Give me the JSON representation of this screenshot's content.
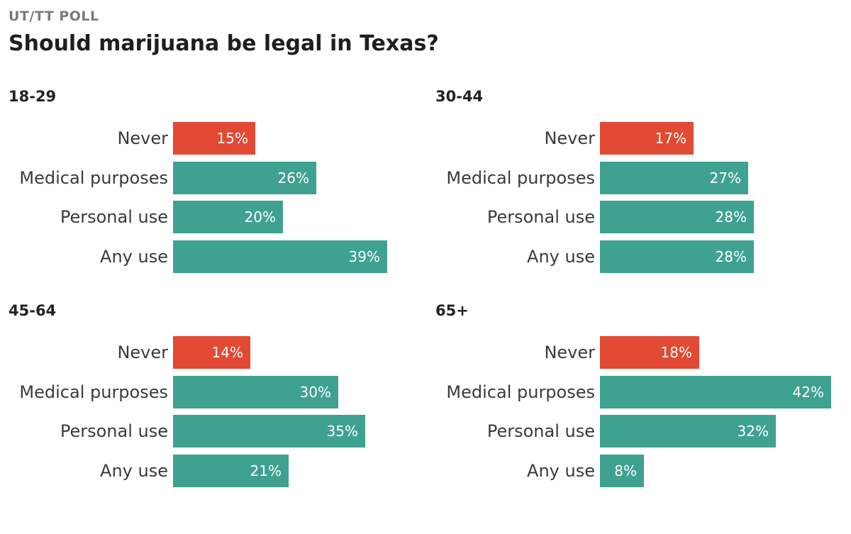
{
  "header": {
    "kicker": "UT/TT POLL",
    "title": "Should marijuana be legal in Texas?"
  },
  "colors": {
    "never": "#e24a33",
    "legal": "#3fa190"
  },
  "chart_data": [
    {
      "type": "bar",
      "orientation": "horizontal",
      "title": "18-29",
      "categories": [
        "Never",
        "Medical purposes",
        "Personal use",
        "Any use"
      ],
      "values": [
        15,
        26,
        20,
        39
      ],
      "labels": [
        "15%",
        "26%",
        "20%",
        "39%"
      ],
      "unit": "%"
    },
    {
      "type": "bar",
      "orientation": "horizontal",
      "title": "30-44",
      "categories": [
        "Never",
        "Medical purposes",
        "Personal use",
        "Any use"
      ],
      "values": [
        17,
        27,
        28,
        28
      ],
      "labels": [
        "17%",
        "27%",
        "28%",
        "28%"
      ],
      "unit": "%"
    },
    {
      "type": "bar",
      "orientation": "horizontal",
      "title": "45-64",
      "categories": [
        "Never",
        "Medical purposes",
        "Personal use",
        "Any use"
      ],
      "values": [
        14,
        30,
        35,
        21
      ],
      "labels": [
        "14%",
        "30%",
        "35%",
        "21%"
      ],
      "unit": "%"
    },
    {
      "type": "bar",
      "orientation": "horizontal",
      "title": "65+",
      "categories": [
        "Never",
        "Medical purposes",
        "Personal use",
        "Any use"
      ],
      "values": [
        18,
        42,
        32,
        8
      ],
      "labels": [
        "18%",
        "42%",
        "32%",
        "8%"
      ],
      "unit": "%"
    }
  ]
}
